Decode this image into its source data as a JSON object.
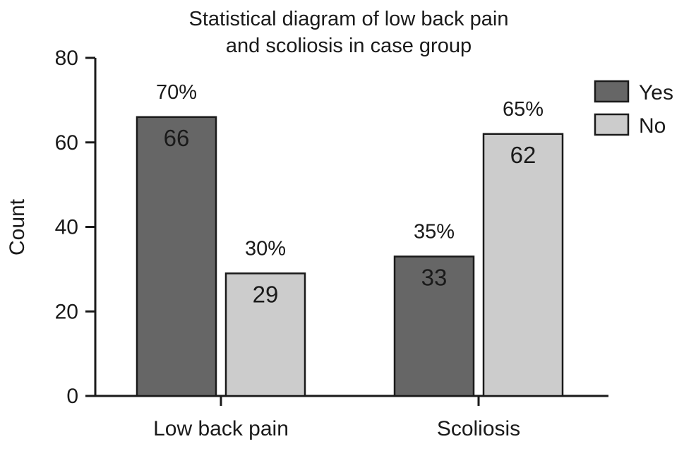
{
  "chart_data": {
    "type": "bar",
    "title_lines": [
      "Statistical diagram of low back pain",
      "and scoliosis in case group"
    ],
    "xlabel": "",
    "ylabel": "Count",
    "ylim": [
      0,
      80
    ],
    "yticks": [
      0,
      20,
      40,
      60,
      80
    ],
    "grid": false,
    "legend_position": "top-right",
    "categories": [
      "Low back pain",
      "Scoliosis"
    ],
    "series": [
      {
        "name": "Yes",
        "color": "#666666",
        "values": [
          66,
          33
        ],
        "percent_labels": [
          "70%",
          "35%"
        ]
      },
      {
        "name": "No",
        "color": "#cccccc",
        "values": [
          29,
          62
        ],
        "percent_labels": [
          "30%",
          "65%"
        ]
      }
    ]
  }
}
